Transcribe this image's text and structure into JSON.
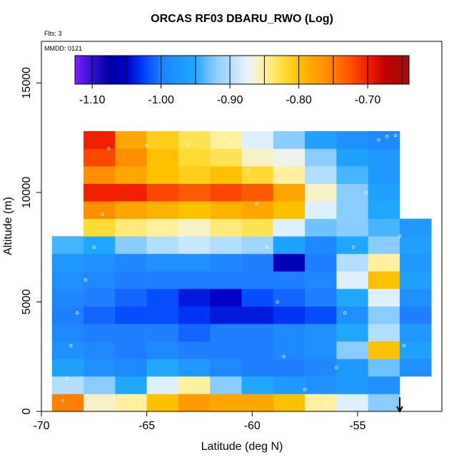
{
  "chart_data": {
    "type": "heatmap",
    "title": "ORCAS RF03 DBARU_RWO (Log)",
    "annotations": [
      "Flts: 3",
      "MMDD: 0121"
    ],
    "xlabel": "Latitude (deg N)",
    "ylabel": "Altitude (m)",
    "xlim": [
      -70,
      -51
    ],
    "ylim": [
      0,
      16900
    ],
    "xticks": [
      -70,
      -65,
      -60,
      -55
    ],
    "yticks": [
      0,
      5000,
      10000,
      15000
    ],
    "x_edges": [
      -69.5,
      -68,
      -66.5,
      -65,
      -63.5,
      -62,
      -60.5,
      -59,
      -57.5,
      -56,
      -54.5,
      -53,
      -51.5
    ],
    "y_edges": [
      0,
      800,
      1600,
      2400,
      3200,
      4000,
      4800,
      5600,
      6400,
      7200,
      8000,
      8800,
      9600,
      10400,
      11200,
      12000,
      12800
    ],
    "z": [
      [
        -0.75,
        -0.86,
        -0.85,
        -0.8,
        -0.77,
        -0.78,
        -0.78,
        -0.8,
        -0.85,
        -0.88,
        -0.92,
        null
      ],
      [
        -0.9,
        -0.92,
        -0.95,
        -0.88,
        -0.85,
        -0.92,
        -0.95,
        -0.97,
        -0.98,
        -0.97,
        -0.98,
        null
      ],
      [
        -0.96,
        -0.98,
        -0.99,
        -0.95,
        -0.97,
        -0.99,
        -1.0,
        -1.0,
        -0.99,
        -0.97,
        -0.93,
        -0.98
      ],
      [
        -0.98,
        -0.99,
        -1.0,
        -0.99,
        -1.0,
        -1.0,
        -1.0,
        -0.99,
        -0.98,
        -0.92,
        -0.8,
        -0.96
      ],
      [
        -0.99,
        -1.0,
        -1.0,
        -1.0,
        -1.01,
        -1.0,
        -1.0,
        -0.99,
        -0.98,
        -0.95,
        -0.9,
        -0.97
      ],
      [
        -1.0,
        -1.01,
        -1.02,
        -1.02,
        -1.03,
        -1.04,
        -1.04,
        -1.03,
        -1.02,
        -0.98,
        -0.92,
        -1.0
      ],
      [
        -0.99,
        -1.0,
        -1.01,
        -1.02,
        -1.04,
        -1.05,
        -1.02,
        -1.01,
        -1.0,
        -0.95,
        -0.88,
        -0.98
      ],
      [
        -0.98,
        -0.99,
        -1.0,
        -1.0,
        -1.0,
        -1.0,
        -1.0,
        -1.0,
        -0.99,
        -0.88,
        -0.8,
        -0.96
      ],
      [
        -0.97,
        -0.98,
        -0.99,
        -0.98,
        -0.98,
        -0.99,
        -1.0,
        -1.06,
        -1.0,
        -0.9,
        -0.85,
        -0.97
      ],
      [
        -0.94,
        -0.95,
        -0.92,
        -0.9,
        -0.89,
        -0.9,
        -0.91,
        -0.96,
        -0.99,
        -0.95,
        -0.92,
        -0.96
      ],
      [
        null,
        -0.82,
        -0.84,
        -0.85,
        -0.86,
        -0.84,
        -0.83,
        -0.88,
        -0.93,
        -0.92,
        -0.94,
        -0.97
      ],
      [
        null,
        -0.76,
        -0.78,
        -0.79,
        -0.8,
        -0.79,
        -0.78,
        -0.8,
        -0.88,
        -0.92,
        -0.95,
        null
      ],
      [
        null,
        -0.7,
        -0.7,
        -0.72,
        -0.73,
        -0.72,
        -0.73,
        -0.78,
        -0.86,
        -0.92,
        -0.96,
        null
      ],
      [
        null,
        -0.76,
        -0.78,
        -0.8,
        -0.81,
        -0.8,
        -0.82,
        -0.85,
        -0.9,
        -0.94,
        -0.97,
        null
      ],
      [
        null,
        -0.72,
        -0.76,
        -0.8,
        -0.82,
        -0.83,
        -0.86,
        -0.87,
        -0.92,
        -0.96,
        -0.97,
        null
      ],
      [
        null,
        -0.7,
        -0.78,
        -0.81,
        -0.83,
        -0.85,
        -0.88,
        -0.92,
        -0.96,
        -0.98,
        -0.99,
        null
      ]
    ],
    "colormap": [
      [
        -1.125,
        "#8020ff"
      ],
      [
        -1.1,
        "#3010d0"
      ],
      [
        -1.075,
        "#0000a0"
      ],
      [
        -1.05,
        "#0000c8"
      ],
      [
        -1.025,
        "#0040ff"
      ],
      [
        -1.0,
        "#1e80ff"
      ],
      [
        -0.95,
        "#20a8ff"
      ],
      [
        -0.925,
        "#80c8ff"
      ],
      [
        -0.875,
        "#e8f4ff"
      ],
      [
        -0.85,
        "#fff0a0"
      ],
      [
        -0.825,
        "#ffe040"
      ],
      [
        -0.8,
        "#ffc000"
      ],
      [
        -0.775,
        "#ffa000"
      ],
      [
        -0.75,
        "#ff8000"
      ],
      [
        -0.725,
        "#ff5000"
      ],
      [
        -0.7,
        "#f02000"
      ],
      [
        -0.675,
        "#c00000"
      ],
      [
        -0.64,
        "#a01010"
      ]
    ],
    "colorbar_lim": [
      -1.125,
      -0.64
    ],
    "colorbar_breaks": [
      -1.1,
      -1.05,
      -1.0,
      -0.95,
      -0.9,
      -0.85,
      -0.8,
      -0.75,
      -0.7,
      -0.65
    ],
    "colorbar_ticks": [
      {
        "value": -1.1,
        "label": "-1.10"
      },
      {
        "value": -1.0,
        "label": "-1.00"
      },
      {
        "value": -0.9,
        "label": "-0.90"
      },
      {
        "value": -0.8,
        "label": "-0.80"
      },
      {
        "value": -0.7,
        "label": "-0.70"
      }
    ],
    "flight_track": {
      "x": [
        -69,
        -68.8,
        -68.6,
        -68.3,
        -67.9,
        -67.5,
        -67.1,
        -66.8,
        -65,
        -63,
        -61,
        -60.2,
        -59.8,
        -59.3,
        -58.8,
        -58.5,
        -57.5,
        -56.5,
        -56,
        -55.6,
        -55.2,
        -54.6,
        -54,
        -53.6,
        -53.2,
        -53,
        -52.8
      ],
      "y": [
        500,
        1500,
        3000,
        4500,
        6000,
        7500,
        9000,
        12000,
        12150,
        12200,
        12250,
        11000,
        9500,
        7500,
        5000,
        2500,
        1000,
        300,
        2000,
        4500,
        7500,
        10000,
        12400,
        12550,
        12600,
        8000,
        3000
      ]
    },
    "marker": {
      "x": -53,
      "y": 0
    }
  }
}
